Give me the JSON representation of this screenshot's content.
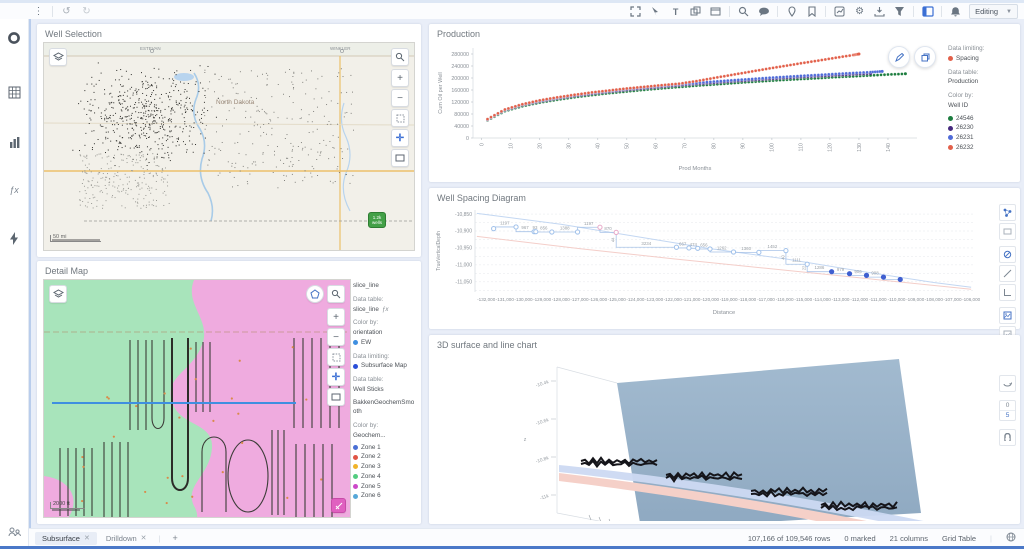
{
  "toolbar": {
    "mode_label": "Editing"
  },
  "panels": {
    "well_selection": {
      "title": "Well Selection",
      "city_north_west": "ESTEVAN",
      "city_north_east": "WINKLER",
      "region_label": "North Dakota",
      "scale_label": "50 mi",
      "cluster_badge_line1": "1.2k",
      "cluster_badge_line2": "wells"
    },
    "production": {
      "title": "Production",
      "legend": {
        "limiting_label": "Data limiting:",
        "limiting_value": "Spacing",
        "limiting_color": "#e2604a",
        "table_label": "Data table:",
        "table_value": "Production",
        "color_label": "Color by:",
        "color_value": "Well ID"
      }
    },
    "well_spacing": {
      "title": "Well Spacing Diagram"
    },
    "detail_map": {
      "title": "Detail Map",
      "scale_label": "2000 ft",
      "legend": {
        "layer1_title": "slice_line",
        "table_label": "Data table:",
        "table1_value": "slice_line",
        "color_label": "Color by:",
        "color1_value": "orientation",
        "orientation_item": {
          "label": "EW",
          "color": "#3f8fe0"
        },
        "limiting_label": "Data limiting:",
        "limiting_item": {
          "label": "Subsurface Map",
          "color": "#2b4fd8"
        },
        "table2_value": "Well Sticks",
        "layer3_title": "BakkenGeochemSmooth",
        "color2_value": "Geochem...",
        "zones": [
          {
            "label": "Zone 1",
            "color": "#4a6fd4"
          },
          {
            "label": "Zone 2",
            "color": "#e05545"
          },
          {
            "label": "Zone 3",
            "color": "#f0b429"
          },
          {
            "label": "Zone 4",
            "color": "#53cd7f"
          },
          {
            "label": "Zone 5",
            "color": "#cc49c9"
          },
          {
            "label": "Zone 6",
            "color": "#56a8d8"
          }
        ]
      }
    },
    "surface3d": {
      "title": "3D surface and line chart",
      "z_label": "z",
      "z_ticks": [
        "-10.4k",
        "-10.6k",
        "-10.8k",
        "-11k"
      ],
      "zoom_in": "0",
      "zoom_out": "5"
    }
  },
  "chart_data": [
    {
      "type": "scatter",
      "title": "Production",
      "xlabel": "Prod Months",
      "ylabel": "Cum Oil per Well",
      "xlim": [
        -3,
        150
      ],
      "ylim": [
        0,
        300000
      ],
      "x_ticks": [
        0,
        10,
        20,
        30,
        40,
        50,
        60,
        70,
        80,
        90,
        100,
        110,
        120,
        130,
        140
      ],
      "y_ticks": [
        0,
        40000,
        80000,
        120000,
        160000,
        200000,
        240000,
        280000
      ],
      "legend_position": "right",
      "series": [
        {
          "name": "24546",
          "color": "#1d7d3f",
          "x": [
            2,
            8,
            14,
            20,
            26,
            32,
            38,
            44,
            50,
            56,
            62,
            68,
            74,
            80,
            86,
            92,
            98,
            104,
            110,
            116,
            122,
            128,
            134,
            140,
            146
          ],
          "y": [
            59000,
            89500,
            106000,
            118000,
            127500,
            136000,
            143000,
            149500,
            155000,
            160500,
            165500,
            170000,
            174500,
            178500,
            182500,
            186500,
            190000,
            193500,
            196500,
            199500,
            203000,
            205500,
            208500,
            211500,
            214000
          ]
        },
        {
          "name": "26230",
          "color": "#472a7e",
          "x": [
            2,
            8,
            14,
            20,
            26,
            32,
            38,
            44,
            50,
            56,
            62,
            68,
            74,
            80,
            86,
            92,
            98,
            104,
            110,
            116,
            122,
            128,
            134
          ],
          "y": [
            61000,
            92500,
            109500,
            121500,
            131500,
            140000,
            147500,
            154000,
            160000,
            165500,
            170500,
            175500,
            180000,
            184000,
            188500,
            192000,
            196000,
            199500,
            203000,
            206000,
            209000,
            212000,
            215000
          ]
        },
        {
          "name": "26231",
          "color": "#4f6bd8",
          "x": [
            2,
            8,
            14,
            20,
            26,
            32,
            38,
            44,
            50,
            56,
            62,
            68,
            74,
            80,
            86,
            92,
            98,
            104,
            110,
            116,
            122,
            128,
            134,
            138
          ],
          "y": [
            62000,
            94000,
            111500,
            124000,
            134000,
            143000,
            150500,
            157000,
            163500,
            169000,
            174000,
            179000,
            183500,
            188000,
            192000,
            196000,
            200000,
            203500,
            207000,
            210000,
            213500,
            216500,
            219500,
            222000
          ]
        },
        {
          "name": "26232",
          "color": "#e2604a",
          "x": [
            2,
            8,
            14,
            20,
            26,
            32,
            38,
            44,
            50,
            56,
            62,
            68,
            74,
            80,
            86,
            92,
            98,
            104,
            110,
            116,
            122,
            128,
            130
          ],
          "y": [
            63000,
            95000,
            112500,
            125500,
            135500,
            144000,
            152000,
            158500,
            165000,
            170500,
            176000,
            181000,
            189500,
            200000,
            210000,
            220000,
            230000,
            239500,
            249000,
            258000,
            267500,
            276500,
            280000
          ]
        }
      ]
    },
    {
      "type": "scatter",
      "title": "Well Spacing Diagram",
      "xlabel": "Distance",
      "ylabel": "TrueVerticalDepth",
      "xlim": [
        -132600,
        -105900
      ],
      "ylim": [
        -11080,
        -10838
      ],
      "x_ticks_range": [
        -132000,
        -106000,
        1000
      ],
      "y_ticks": [
        -10850,
        -10900,
        -10950,
        -11000,
        -11050
      ],
      "wells": [
        [
          -131600,
          -10893,
          "o"
        ],
        [
          -130400,
          -10888,
          "o"
        ],
        [
          -129430,
          -10902,
          "o"
        ],
        [
          -129340,
          -10902,
          "o"
        ],
        [
          -128480,
          -10903,
          "o"
        ],
        [
          -127100,
          -10903,
          "o"
        ],
        [
          -125900,
          -10889,
          "p"
        ],
        [
          -125030,
          -10904,
          "p"
        ],
        [
          -121800,
          -10948,
          "o"
        ],
        [
          -121130,
          -10950,
          "o"
        ],
        [
          -120660,
          -10951,
          "o"
        ],
        [
          -120000,
          -10953,
          "o"
        ],
        [
          -118740,
          -10962,
          "o"
        ],
        [
          -117380,
          -10963,
          "o"
        ],
        [
          -115930,
          -10958,
          "o"
        ],
        [
          -114790,
          -10998,
          "o"
        ],
        [
          -113480,
          -11020,
          "f"
        ],
        [
          -112520,
          -11026,
          "f"
        ],
        [
          -111610,
          -11031,
          "f"
        ],
        [
          -110700,
          -11036,
          "f"
        ],
        [
          -109800,
          -11043,
          "f"
        ]
      ],
      "links": [
        [
          0,
          1,
          "1197"
        ],
        [
          1,
          2,
          "967"
        ],
        [
          2,
          3,
          "93"
        ],
        [
          3,
          4,
          "856"
        ],
        [
          4,
          5,
          "1388"
        ],
        [
          5,
          6,
          "1197"
        ],
        [
          6,
          7,
          "870"
        ],
        [
          7,
          8,
          "3234"
        ],
        [
          8,
          9,
          "667"
        ],
        [
          9,
          10,
          "474"
        ],
        [
          10,
          11,
          "656"
        ],
        [
          11,
          12,
          "1262"
        ],
        [
          12,
          13,
          "1360"
        ],
        [
          13,
          14,
          "1452"
        ],
        [
          14,
          15,
          "1111"
        ],
        [
          15,
          16,
          "1286"
        ],
        [
          16,
          17,
          "979"
        ],
        [
          17,
          18,
          "906"
        ],
        [
          18,
          19,
          "908"
        ],
        [
          19,
          20,
          ""
        ]
      ],
      "vertical_labels": [
        [
          -125030,
          -10904,
          -10948,
          "44"
        ],
        [
          -115930,
          -10958,
          -10998,
          "40"
        ],
        [
          -114790,
          -10998,
          -11020,
          "22"
        ]
      ],
      "guides": [
        {
          "color": "#b9d0f0",
          "pts": [
            [
              -132500,
              -10848
            ],
            [
              -128000,
              -10880
            ],
            [
              -124000,
              -10916
            ],
            [
              -120000,
              -10952
            ],
            [
              -116000,
              -10982
            ],
            [
              -112000,
              -11018
            ],
            [
              -108000,
              -11052
            ],
            [
              -106000,
              -11066
            ]
          ]
        },
        {
          "color": "#f2c6bf",
          "pts": [
            [
              -132500,
              -10916
            ],
            [
              -127000,
              -10952
            ],
            [
              -122000,
              -10982
            ],
            [
              -117000,
              -11010
            ],
            [
              -112000,
              -11038
            ],
            [
              -106000,
              -11072
            ]
          ]
        }
      ]
    }
  ],
  "tabs": [
    {
      "label": "Subsurface"
    },
    {
      "label": "Drilldown"
    }
  ],
  "statusbar": {
    "rows": "107,166 of 109,546 rows",
    "marked": "0 marked",
    "columns": "21 columns",
    "view": "Grid Table"
  }
}
